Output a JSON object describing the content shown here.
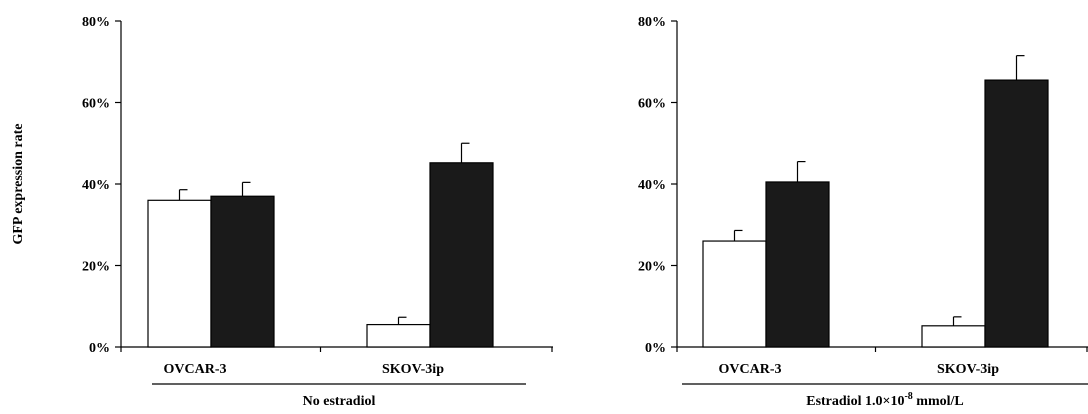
{
  "chart_data": [
    {
      "type": "bar",
      "ylabel": "GFP expression rate",
      "group_label": "No estradiol",
      "group_label_sup": "",
      "group_label_suffix": "",
      "ylim": [
        0,
        80
      ],
      "ytick_values": [
        0,
        20,
        40,
        60,
        80
      ],
      "ytick_labels": [
        "0%",
        "20%",
        "40%",
        "60%",
        "80%"
      ],
      "categories": [
        "OVCAR-3",
        "SKOV-3ip"
      ],
      "series": [
        {
          "values": [
            36,
            5.5
          ],
          "errors": [
            2.6,
            1.8
          ],
          "color": "#ffffff"
        },
        {
          "values": [
            37,
            45.2
          ],
          "errors": [
            3.4,
            4.8
          ],
          "color": "#1a1a1a"
        }
      ],
      "grid": false,
      "legend": "none"
    },
    {
      "type": "bar",
      "ylabel": "",
      "group_label": "Estradiol 1.0×10",
      "group_label_sup": "-8",
      "group_label_suffix": " mmol/L",
      "ylim": [
        0,
        80
      ],
      "ytick_values": [
        0,
        20,
        40,
        60,
        80
      ],
      "ytick_labels": [
        "0%",
        "20%",
        "40%",
        "60%",
        "80%"
      ],
      "categories": [
        "OVCAR-3",
        "SKOV-3ip"
      ],
      "series": [
        {
          "values": [
            26,
            5.2
          ],
          "errors": [
            2.6,
            2.2
          ],
          "color": "#ffffff"
        },
        {
          "values": [
            40.5,
            65.5
          ],
          "errors": [
            5.0,
            6.0
          ],
          "color": "#1a1a1a"
        }
      ],
      "grid": false,
      "legend": "none"
    }
  ]
}
